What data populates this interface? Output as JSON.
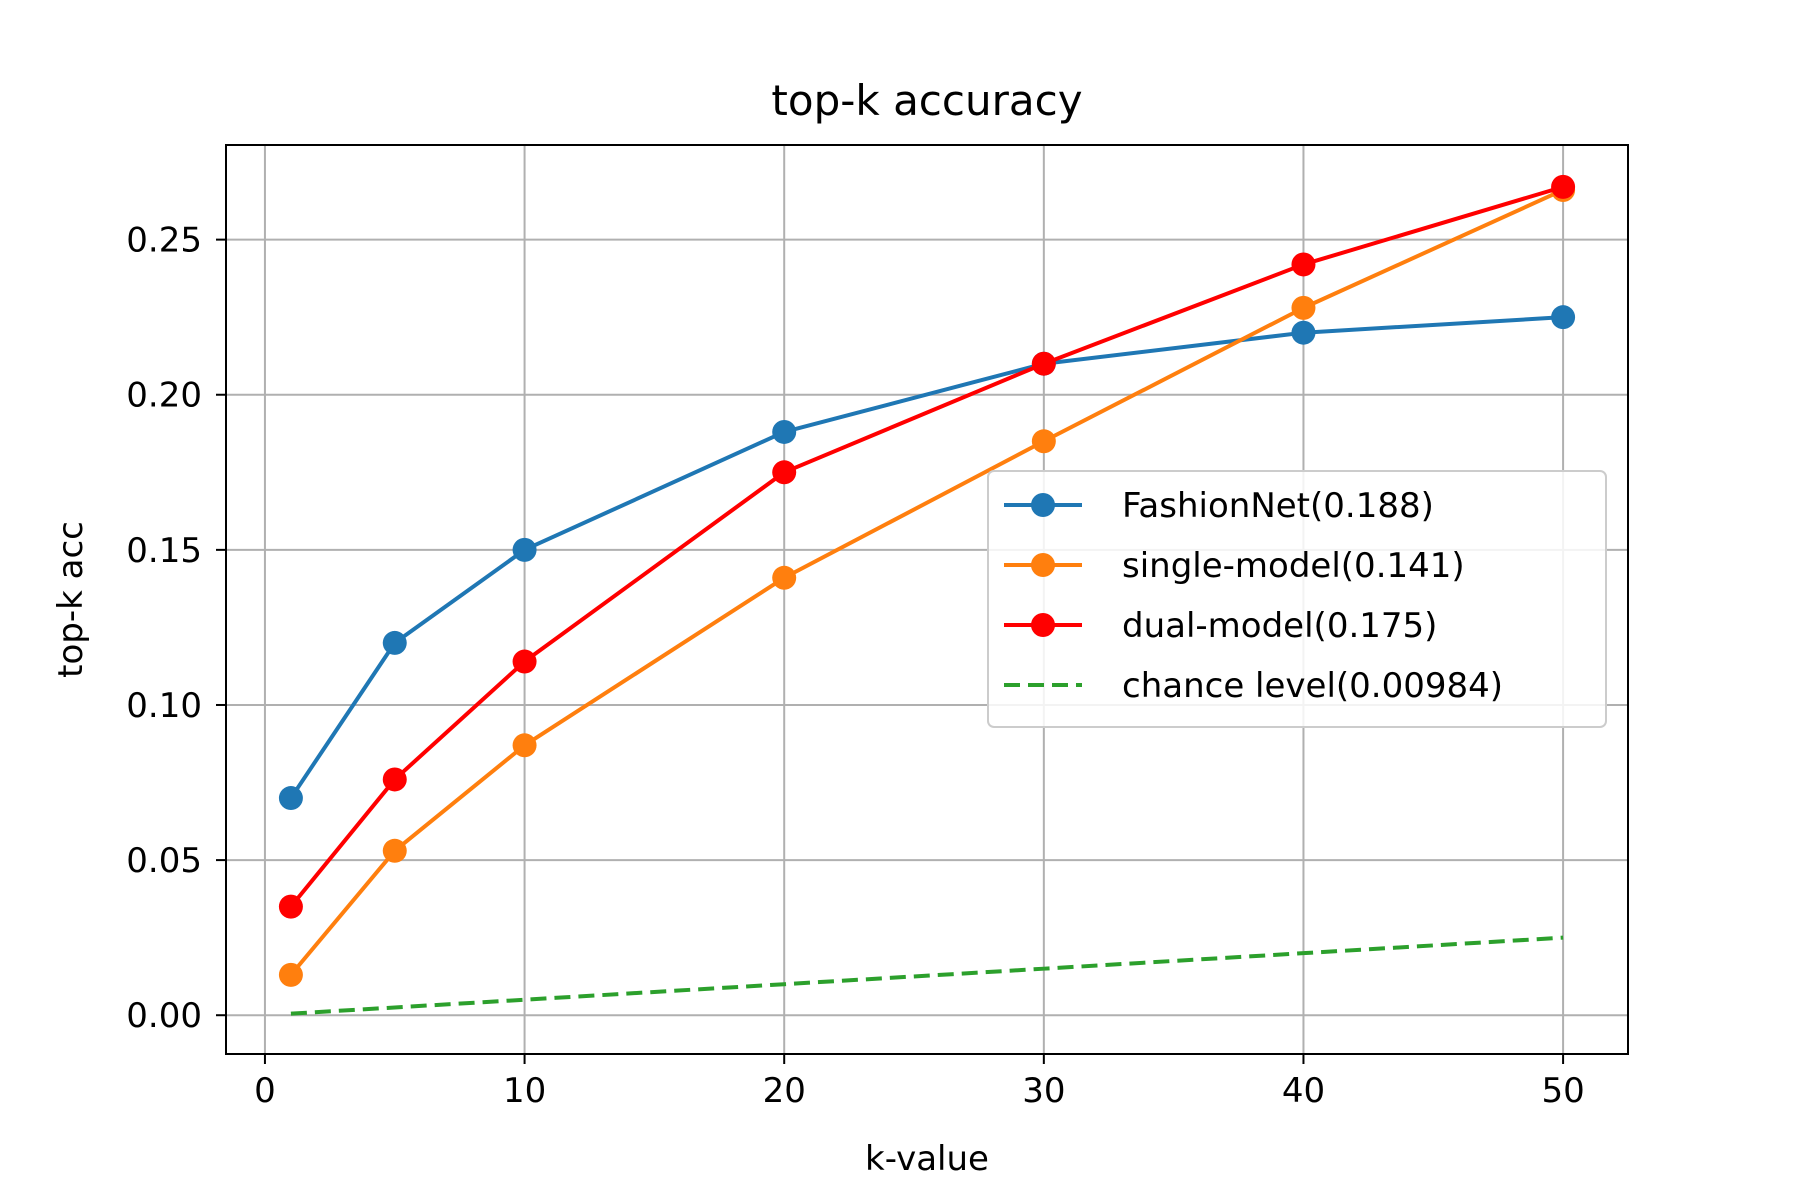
{
  "chart_data": {
    "type": "line",
    "title": "top-k accuracy",
    "xlabel": "k-value",
    "ylabel": "top-k acc",
    "x": [
      1,
      5,
      10,
      20,
      30,
      40,
      50
    ],
    "xlim": [
      -1.5,
      52.5
    ],
    "ylim": [
      -0.0125,
      0.2805
    ],
    "xticks": [
      0,
      10,
      20,
      30,
      40,
      50
    ],
    "xtick_labels": [
      "0",
      "10",
      "20",
      "30",
      "40",
      "50"
    ],
    "yticks": [
      0.0,
      0.05,
      0.1,
      0.15,
      0.2,
      0.25
    ],
    "ytick_labels": [
      "0.00",
      "0.05",
      "0.10",
      "0.15",
      "0.20",
      "0.25"
    ],
    "grid": true,
    "legend_position": "center-right",
    "series": [
      {
        "name": "FashionNet(0.188)",
        "color": "#1f77b4",
        "style": "solid",
        "marker": "circle",
        "values": [
          0.07,
          0.12,
          0.15,
          0.188,
          0.21,
          0.22,
          0.225
        ]
      },
      {
        "name": "single-model(0.141)",
        "color": "#ff7f0e",
        "style": "solid",
        "marker": "circle",
        "values": [
          0.013,
          0.053,
          0.087,
          0.141,
          0.185,
          0.228,
          0.266
        ]
      },
      {
        "name": "dual-model(0.175)",
        "color": "#ff0000",
        "style": "solid",
        "marker": "circle",
        "values": [
          0.035,
          0.076,
          0.114,
          0.175,
          0.21,
          0.242,
          0.267
        ]
      },
      {
        "name": "chance level(0.00984)",
        "color": "#2ca02c",
        "style": "dashed",
        "marker": "none",
        "values": [
          0.0005,
          0.0025,
          0.005,
          0.01,
          0.015,
          0.02,
          0.025
        ]
      }
    ]
  }
}
